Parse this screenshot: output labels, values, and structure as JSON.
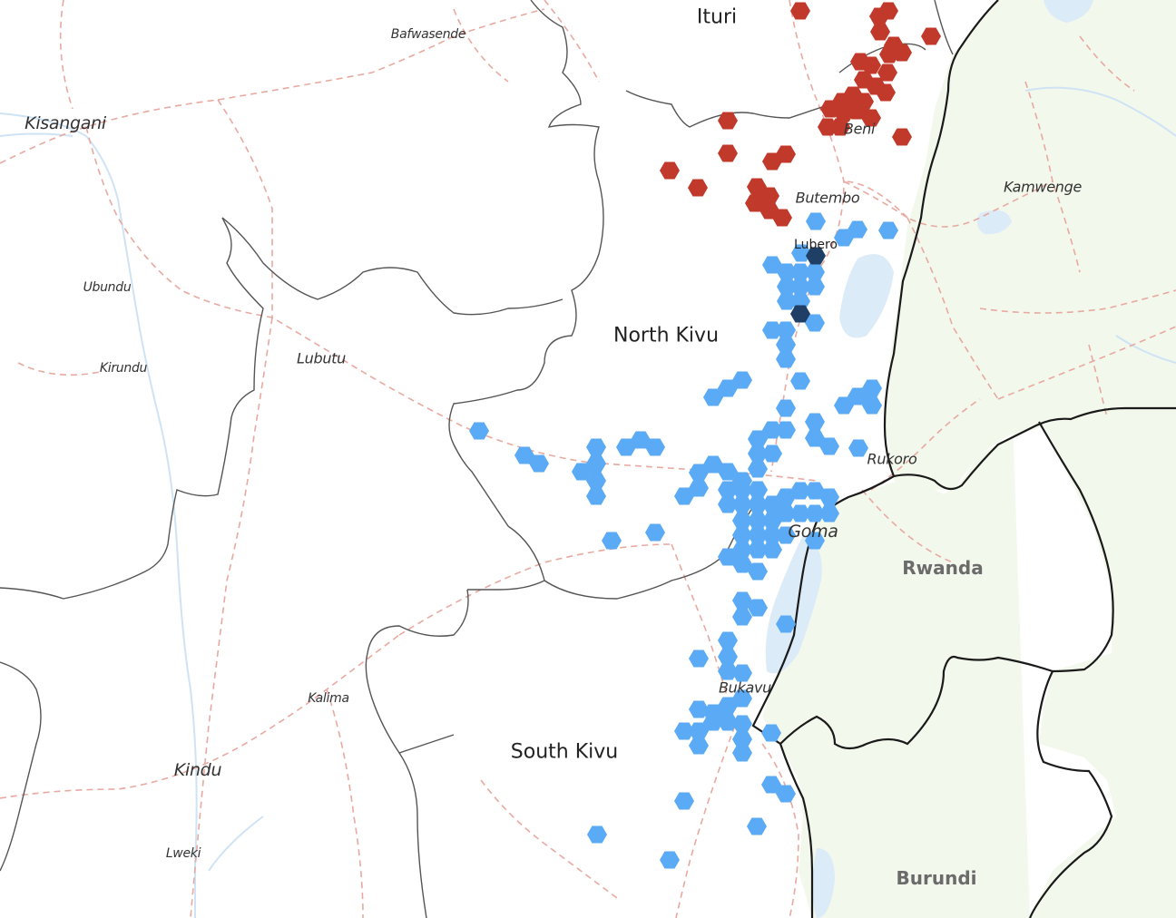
{
  "labels": {
    "ituri": "Ituri",
    "bafwasende": "Bafwasende",
    "kisangani": "Kisangani",
    "beni": "Beni",
    "butembo": "Butembo",
    "lubero": "Lubero",
    "kamwenge": "Kamwenge",
    "ubundu": "Ubundu",
    "kirundu": "Kirundu",
    "lubutu": "Lubutu",
    "north_kivu": "North Kivu",
    "rukoro": "Rukoro",
    "goma": "Goma",
    "rwanda": "Rwanda",
    "bukavu": "Bukavu",
    "kalima": "Kalima",
    "south_kivu": "South Kivu",
    "kindu": "Kindu",
    "lweki": "Lweki",
    "burundi": "Burundi"
  },
  "colors": {
    "red_cluster": "#c0392b",
    "blue_cluster": "#5aaaf5",
    "dark_cluster": "#1f3f66",
    "land_neighbor": "#f2f8ec",
    "water": "#dcebf8",
    "road": "#e8a9a0",
    "border_internal": "#555555",
    "border_international": "#1a1a1a"
  }
}
